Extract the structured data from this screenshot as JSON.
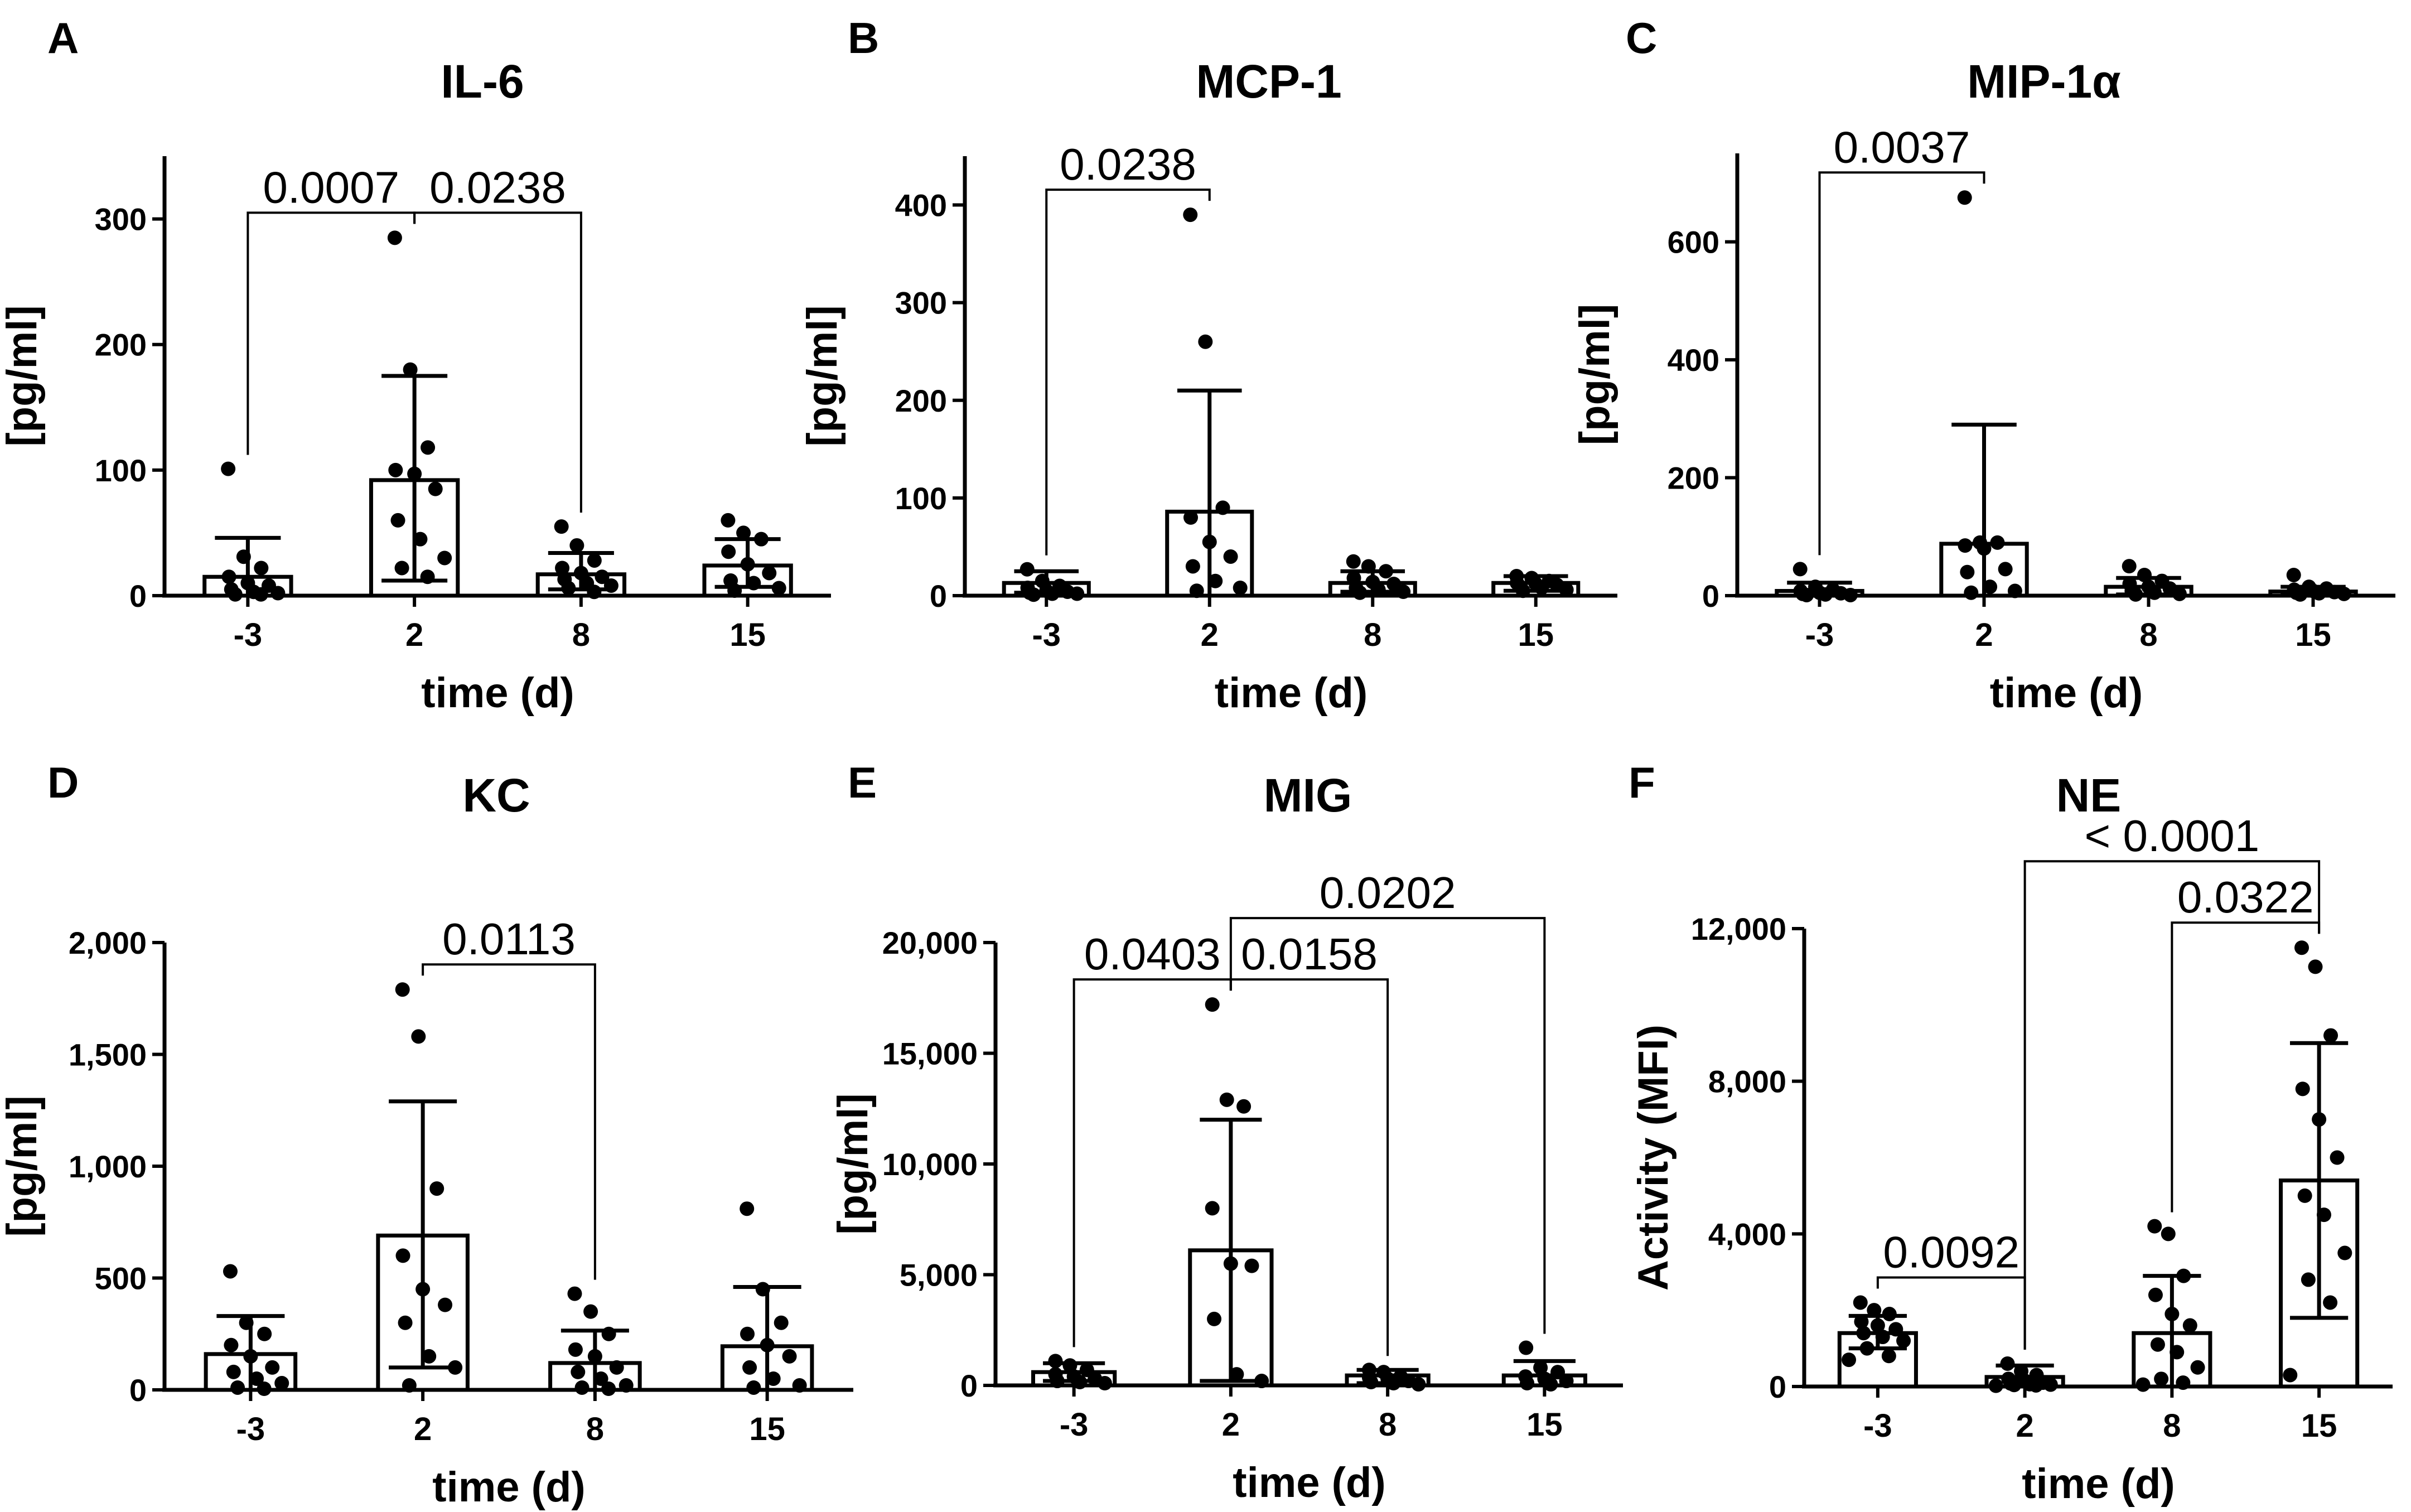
{
  "chart_data": [
    {
      "panel": "A",
      "type": "bar",
      "title": "IL-6",
      "xlabel": "time (d)",
      "ylabel": "[pg/ml]",
      "categories": [
        "-3",
        "2",
        "8",
        "15"
      ],
      "ylim": [
        0,
        350
      ],
      "yticks": [
        0,
        100,
        200,
        300
      ],
      "ytick_labels": [
        "0",
        "100",
        "200",
        "300"
      ],
      "values": [
        15,
        92,
        17,
        24
      ],
      "err_low": [
        0,
        12,
        5,
        7
      ],
      "err_high": [
        46,
        175,
        34,
        45
      ],
      "points": [
        [
          101,
          31,
          22,
          15,
          10,
          8,
          5,
          3,
          2,
          1,
          1
        ],
        [
          285,
          180,
          118,
          100,
          97,
          85,
          60,
          45,
          30,
          22,
          15
        ],
        [
          55,
          40,
          28,
          22,
          18,
          15,
          13,
          10,
          8,
          6,
          3
        ],
        [
          60,
          50,
          45,
          35,
          25,
          18,
          12,
          10,
          6,
          4
        ]
      ],
      "significance": [
        {
          "from": 0,
          "to": 1,
          "label": "0.0007"
        },
        {
          "from": 1,
          "to": 2,
          "label": "0.0238"
        }
      ]
    },
    {
      "panel": "B",
      "type": "bar",
      "title": "MCP-1",
      "xlabel": "time (d)",
      "ylabel": "[pg/ml]",
      "categories": [
        "-3",
        "2",
        "8",
        "15"
      ],
      "ylim": [
        0,
        450
      ],
      "yticks": [
        0,
        100,
        200,
        300,
        400
      ],
      "ytick_labels": [
        "0",
        "100",
        "200",
        "300",
        "400"
      ],
      "values": [
        13,
        86,
        13,
        13
      ],
      "err_low": [
        3,
        0,
        4,
        5
      ],
      "err_high": [
        25,
        210,
        25,
        20
      ],
      "points": [
        [
          27,
          15,
          10,
          8,
          5,
          4,
          3,
          2,
          2,
          1
        ],
        [
          390,
          260,
          90,
          80,
          55,
          40,
          30,
          15,
          8,
          5
        ],
        [
          35,
          30,
          25,
          18,
          14,
          12,
          8,
          6,
          4,
          3
        ],
        [
          20,
          18,
          15,
          13,
          12,
          11,
          10,
          8,
          6,
          5
        ]
      ],
      "significance": [
        {
          "from": 0,
          "to": 1,
          "label": "0.0238"
        }
      ]
    },
    {
      "panel": "C",
      "type": "bar",
      "title": "MIP-1α",
      "xlabel": "time (d)",
      "ylabel": "[pg/ml]",
      "categories": [
        "-3",
        "2",
        "8",
        "15"
      ],
      "ylim": [
        0,
        750
      ],
      "yticks": [
        0,
        200,
        400,
        600
      ],
      "ytick_labels": [
        "0",
        "200",
        "400",
        "600"
      ],
      "values": [
        8,
        88,
        15,
        7
      ],
      "err_low": [
        0,
        0,
        2,
        2
      ],
      "err_high": [
        22,
        290,
        30,
        15
      ],
      "points": [
        [
          45,
          15,
          10,
          8,
          5,
          4,
          3,
          2,
          1,
          1
        ],
        [
          675,
          90,
          90,
          85,
          80,
          45,
          40,
          15,
          8,
          5
        ],
        [
          50,
          35,
          25,
          20,
          15,
          12,
          8,
          5,
          3,
          2
        ],
        [
          35,
          15,
          12,
          10,
          8,
          6,
          5,
          4,
          3,
          2
        ]
      ],
      "significance": [
        {
          "from": 0,
          "to": 1,
          "label": "0.0037"
        }
      ]
    },
    {
      "panel": "D",
      "type": "bar",
      "title": "KC",
      "xlabel": "time (d)",
      "ylabel": "[pg/ml]",
      "categories": [
        "-3",
        "2",
        "8",
        "15"
      ],
      "ylim": [
        0,
        2000
      ],
      "yticks": [
        0,
        500,
        1000,
        1500,
        2000
      ],
      "ytick_labels": [
        "0",
        "500",
        "1,000",
        "1,500",
        "2,000"
      ],
      "values": [
        160,
        690,
        120,
        195
      ],
      "err_low": [
        0,
        100,
        0,
        0
      ],
      "err_high": [
        330,
        1290,
        265,
        460
      ],
      "points": [
        [
          530,
          300,
          250,
          200,
          150,
          100,
          80,
          50,
          30,
          10,
          5
        ],
        [
          1790,
          1580,
          900,
          600,
          450,
          380,
          300,
          150,
          100,
          20
        ],
        [
          430,
          350,
          250,
          180,
          150,
          100,
          80,
          50,
          20,
          10,
          5
        ],
        [
          810,
          450,
          300,
          250,
          200,
          150,
          100,
          50,
          20,
          10
        ]
      ],
      "significance": [
        {
          "from": 1,
          "to": 2,
          "label": "0.0113"
        }
      ]
    },
    {
      "panel": "E",
      "type": "bar",
      "title": "MIG",
      "xlabel": "time (d)",
      "ylabel": "[pg/ml]",
      "categories": [
        "-3",
        "2",
        "8",
        "15"
      ],
      "ylim": [
        0,
        20000
      ],
      "yticks": [
        0,
        5000,
        10000,
        15000,
        20000
      ],
      "ytick_labels": [
        "0",
        "5,000",
        "10,000",
        "15,000",
        "20,000"
      ],
      "values": [
        600,
        6100,
        450,
        450
      ],
      "err_low": [
        200,
        200,
        100,
        0
      ],
      "err_high": [
        1000,
        12000,
        700,
        1100
      ],
      "points": [
        [
          1100,
          900,
          700,
          500,
          400,
          300,
          200,
          150,
          100
        ],
        [
          17200,
          12900,
          12600,
          8000,
          5500,
          5400,
          3000,
          500,
          200
        ],
        [
          700,
          600,
          400,
          350,
          300,
          200,
          150,
          100,
          50
        ],
        [
          1700,
          800,
          600,
          400,
          300,
          200,
          100,
          50
        ]
      ],
      "significance": [
        {
          "from": 0,
          "to": 1,
          "label": "0.0403"
        },
        {
          "from": 1,
          "to": 2,
          "label": "0.0158"
        },
        {
          "from": 1,
          "to": 3,
          "label": "0.0202"
        }
      ]
    },
    {
      "panel": "F",
      "type": "bar",
      "title": "NE",
      "xlabel": "time (d)",
      "ylabel": "Activity (MFI)",
      "categories": [
        "-3",
        "2",
        "8",
        "15"
      ],
      "ylim": [
        0,
        12000
      ],
      "yticks": [
        0,
        4000,
        8000,
        12000
      ],
      "ytick_labels": [
        "0",
        "4,000",
        "8,000",
        "12,000"
      ],
      "values": [
        1400,
        250,
        1400,
        5400
      ],
      "err_low": [
        1000,
        0,
        0,
        1800
      ],
      "err_high": [
        1850,
        550,
        2900,
        9000
      ],
      "points": [
        [
          2200,
          2000,
          1900,
          1700,
          1600,
          1500,
          1400,
          1300,
          1200,
          1000,
          800,
          700
        ],
        [
          600,
          400,
          300,
          200,
          150,
          100,
          80,
          60,
          50,
          40,
          30,
          20
        ],
        [
          4200,
          4000,
          2900,
          2400,
          1900,
          1600,
          1100,
          900,
          500,
          200,
          100,
          50
        ],
        [
          11500,
          11000,
          9200,
          7800,
          7000,
          6000,
          5000,
          4500,
          3500,
          2800,
          2200,
          300
        ]
      ],
      "significance": [
        {
          "from": 0,
          "to": 1,
          "label": "0.0092"
        },
        {
          "from": 2,
          "to": 3,
          "label": "0.0322"
        },
        {
          "from": 1,
          "to": 3,
          "label": "< 0.0001"
        }
      ]
    }
  ]
}
